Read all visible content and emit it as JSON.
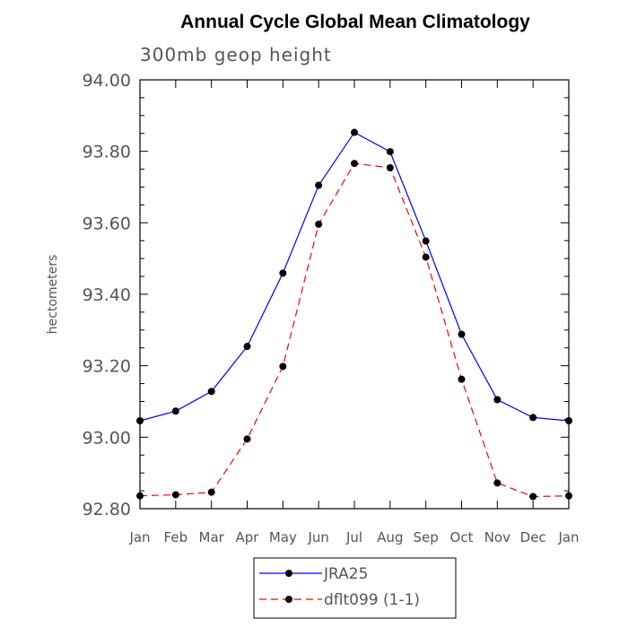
{
  "chart_data": {
    "type": "line",
    "title": "Annual Cycle Global Mean Climatology",
    "subtitle": "300mb geop height",
    "xlabel": "",
    "ylabel": "hectometers",
    "categories": [
      "Jan",
      "Feb",
      "Mar",
      "Apr",
      "May",
      "Jun",
      "Jul",
      "Aug",
      "Sep",
      "Oct",
      "Nov",
      "Dec",
      "Jan"
    ],
    "ylim": [
      92.8,
      94.0
    ],
    "y_ticks": [
      "92.80",
      "93.00",
      "93.20",
      "93.40",
      "93.60",
      "93.80",
      "94.00"
    ],
    "grid": false,
    "legend_position": "bottom-center",
    "series": [
      {
        "name": "JRA25",
        "color": "#0000ff",
        "line_style": "solid",
        "marker": "filled-circle",
        "values": [
          93.046,
          93.073,
          93.128,
          93.254,
          93.459,
          93.705,
          93.853,
          93.799,
          93.549,
          93.288,
          93.105,
          93.055,
          93.046
        ]
      },
      {
        "name": "dflt099 (1-1)",
        "color": "#ff0000",
        "line_style": "dashed",
        "marker": "filled-circle",
        "values": [
          92.836,
          92.839,
          92.846,
          92.995,
          93.198,
          93.596,
          93.766,
          93.754,
          93.504,
          93.162,
          92.872,
          92.834,
          92.836
        ]
      }
    ]
  }
}
